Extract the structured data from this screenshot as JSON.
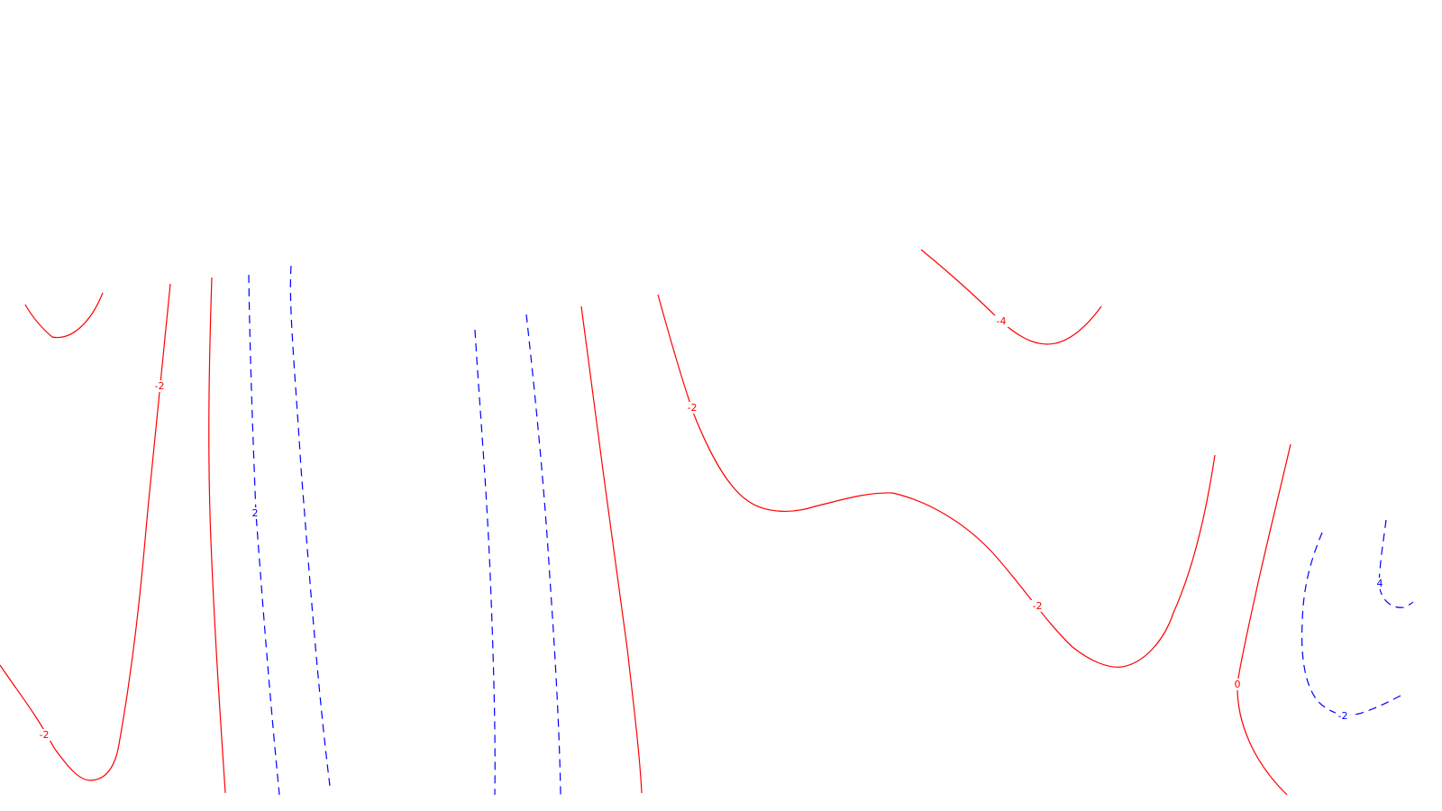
{
  "colors": {
    "background": "#ffffff",
    "negative": "#ff0000",
    "positive": "#0000ff"
  },
  "chart_data": {
    "type": "contour",
    "title": "",
    "xlabel": "",
    "ylabel": "",
    "negative_style": "solid red",
    "positive_style": "dashed blue",
    "contour_labels": [
      "-2",
      "-2",
      "-2",
      "-4",
      "-2",
      "2",
      "0",
      "-2",
      "4"
    ]
  }
}
